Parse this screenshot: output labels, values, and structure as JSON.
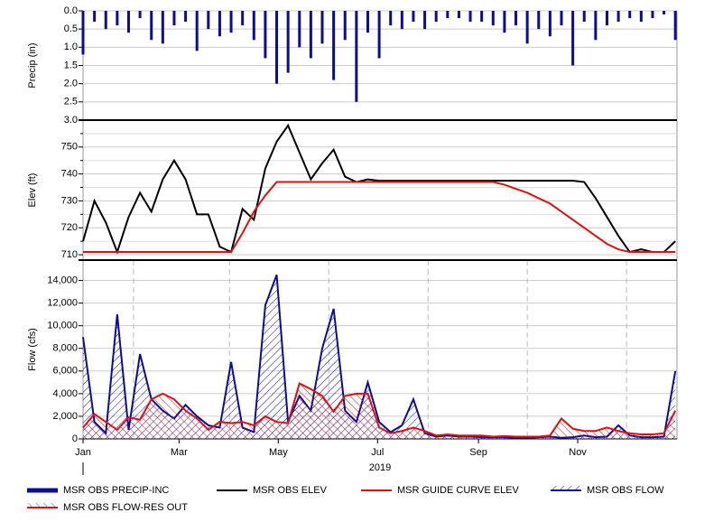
{
  "chart_data": [
    {
      "type": "bar",
      "y_label": "Precip (in)",
      "inverted": true,
      "grid": true,
      "xlim": [
        0,
        365
      ],
      "ylim": [
        0,
        3
      ],
      "yticks": [
        {
          "value": 0,
          "label": "0.0"
        },
        0.5,
        {
          "value": 1,
          "label": "1.0"
        },
        1.5,
        {
          "value": 2,
          "label": "2.0"
        },
        2.5,
        {
          "value": 3,
          "label": "3.0"
        }
      ],
      "x": [
        0,
        7,
        14,
        21,
        28,
        35,
        42,
        49,
        56,
        63,
        70,
        77,
        84,
        91,
        98,
        105,
        112,
        119,
        126,
        133,
        140,
        147,
        154,
        161,
        168,
        175,
        182,
        189,
        196,
        203,
        210,
        217,
        224,
        231,
        238,
        245,
        252,
        259,
        266,
        273,
        280,
        287,
        294,
        301,
        308,
        315,
        322,
        329,
        336,
        343,
        350,
        357,
        364
      ],
      "series": [
        {
          "name": "MSR OBS PRECIP-INC",
          "color": "#0c0c9c",
          "values": [
            1.2,
            0.3,
            0.5,
            0.4,
            0.6,
            0.2,
            0.8,
            0.9,
            0.4,
            0.3,
            1.1,
            0.5,
            0.7,
            0.6,
            0.4,
            0.8,
            1.3,
            2.0,
            1.7,
            1.0,
            1.3,
            0.9,
            1.9,
            0.8,
            2.5,
            0.6,
            1.3,
            0.4,
            0.5,
            0.3,
            0.5,
            0.3,
            0.2,
            0.2,
            0.3,
            0.3,
            0.4,
            0.6,
            0.4,
            0.9,
            0.5,
            0.7,
            0.4,
            1.5,
            0.3,
            0.8,
            0.4,
            0.3,
            0.2,
            0.3,
            0.2,
            0.1,
            0.8
          ]
        }
      ]
    },
    {
      "type": "line",
      "y_label": "Elev (ft)",
      "grid": true,
      "xlim": [
        0,
        365
      ],
      "ylim": [
        708,
        760
      ],
      "yticks": [
        710,
        720,
        730,
        740,
        750
      ],
      "minor_yticks": [
        715,
        725,
        735,
        745,
        755
      ],
      "x": [
        0,
        7,
        14,
        21,
        28,
        35,
        42,
        49,
        56,
        63,
        70,
        77,
        84,
        91,
        98,
        105,
        112,
        119,
        126,
        133,
        140,
        147,
        154,
        161,
        168,
        175,
        182,
        189,
        196,
        203,
        210,
        217,
        224,
        231,
        238,
        245,
        252,
        259,
        266,
        273,
        280,
        287,
        294,
        301,
        308,
        315,
        322,
        329,
        336,
        343,
        350,
        357,
        364
      ],
      "series": [
        {
          "name": "MSR OBS ELEV",
          "color": "#000000",
          "values": [
            715,
            730,
            722,
            711,
            724,
            733,
            726,
            738,
            745,
            738,
            725,
            725,
            713,
            711,
            727,
            723,
            742,
            752,
            758,
            748,
            738,
            744,
            749,
            739,
            737,
            738,
            737.5,
            737.5,
            737.5,
            737.5,
            737.5,
            737.5,
            737.5,
            737.5,
            737.5,
            737.5,
            737.5,
            737.5,
            737.5,
            737.5,
            737.5,
            737.5,
            737.5,
            737.5,
            737,
            731,
            724,
            717,
            711,
            712,
            711,
            711,
            715
          ]
        },
        {
          "name": "MSR GUIDE CURVE ELEV",
          "color": "#e01010",
          "values": [
            711,
            711,
            711,
            711,
            711,
            711,
            711,
            711,
            711,
            711,
            711,
            711,
            711,
            711,
            718,
            726,
            732,
            737,
            737,
            737,
            737,
            737,
            737,
            737,
            737,
            737,
            737,
            737,
            737,
            737,
            737,
            737,
            737,
            737,
            737,
            737,
            737,
            736,
            734.5,
            733,
            731,
            729,
            726,
            723,
            720,
            717,
            714,
            712,
            711,
            711,
            711,
            711,
            711
          ]
        }
      ]
    },
    {
      "type": "area",
      "y_label": "Flow (cfs)",
      "grid": true,
      "x_label": "2019",
      "xlim": [
        0,
        365
      ],
      "ylim": [
        0,
        15800
      ],
      "yticks": [
        0,
        {
          "value": 2000,
          "label": "2,000"
        },
        {
          "value": 4000,
          "label": "4,000"
        },
        {
          "value": 6000,
          "label": "6,000"
        },
        {
          "value": 8000,
          "label": "8,000"
        },
        {
          "value": 10000,
          "label": "10,000"
        },
        {
          "value": 12000,
          "label": "12,000"
        },
        {
          "value": 14000,
          "label": "14,000"
        }
      ],
      "xticks": [
        {
          "value": 0,
          "label": "Jan"
        },
        {
          "value": 59,
          "label": "Mar"
        },
        {
          "value": 120,
          "label": "May"
        },
        {
          "value": 181,
          "label": "Jul"
        },
        {
          "value": 243,
          "label": "Sep"
        },
        {
          "value": 304,
          "label": "Nov"
        }
      ],
      "minor_xticks": [
        31,
        90,
        151,
        212,
        273,
        334
      ],
      "x": [
        0,
        7,
        14,
        21,
        28,
        35,
        42,
        49,
        56,
        63,
        70,
        77,
        84,
        91,
        98,
        105,
        112,
        119,
        126,
        133,
        140,
        147,
        154,
        161,
        168,
        175,
        182,
        189,
        196,
        203,
        210,
        217,
        224,
        231,
        238,
        245,
        252,
        259,
        266,
        273,
        280,
        287,
        294,
        301,
        308,
        315,
        322,
        329,
        336,
        343,
        350,
        357,
        364
      ],
      "series": [
        {
          "name": "MSR OBS FLOW",
          "color": "#0c0c9c",
          "values": [
            9000,
            1500,
            500,
            11000,
            800,
            7500,
            3500,
            2500,
            1800,
            3000,
            2000,
            1200,
            1000,
            6800,
            1000,
            600,
            11800,
            14500,
            1500,
            3800,
            2500,
            8000,
            11500,
            2500,
            1500,
            5000,
            1500,
            600,
            1200,
            3500,
            500,
            200,
            300,
            200,
            200,
            150,
            150,
            150,
            100,
            100,
            150,
            200,
            100,
            150,
            300,
            150,
            200,
            1200,
            300,
            150,
            150,
            200,
            6000
          ]
        },
        {
          "name": "MSR OBS FLOW-RES OUT",
          "color": "#e01010",
          "values": [
            1000,
            2200,
            1500,
            800,
            1900,
            1700,
            3500,
            4000,
            3500,
            2500,
            1800,
            800,
            1500,
            1400,
            1500,
            1200,
            2000,
            1500,
            1400,
            4900,
            4400,
            3800,
            2400,
            3800,
            4000,
            4000,
            1000,
            500,
            700,
            1000,
            700,
            300,
            400,
            300,
            300,
            300,
            200,
            250,
            200,
            200,
            200,
            300,
            1800,
            900,
            700,
            700,
            1000,
            700,
            500,
            400,
            400,
            500,
            2500
          ]
        }
      ]
    }
  ]
}
